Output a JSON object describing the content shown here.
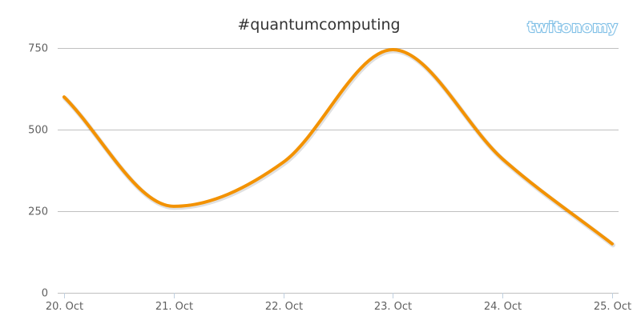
{
  "chart_data": {
    "type": "line",
    "title": "#quantumcomputing",
    "categories": [
      "20. Oct",
      "21. Oct",
      "22. Oct",
      "23. Oct",
      "24. Oct",
      "25. Oct"
    ],
    "series": [
      {
        "values": [
          600,
          265,
          400,
          745,
          410,
          150
        ]
      }
    ],
    "yticks": [
      0,
      250,
      500,
      750
    ],
    "ylim": [
      0,
      750
    ],
    "grid": true,
    "legend": "none",
    "colors": {
      "line": "#f39200"
    }
  },
  "watermark": {
    "text": "twitonomy"
  }
}
